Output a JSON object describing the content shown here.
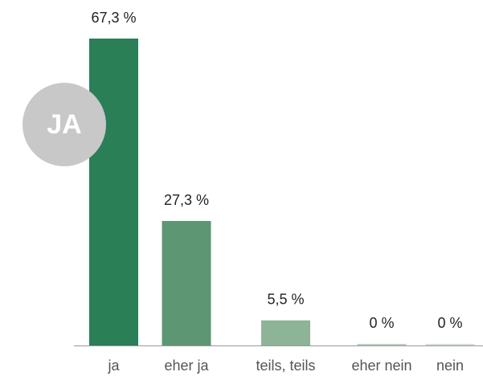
{
  "chart_data": {
    "type": "bar",
    "categories": [
      "ja",
      "eher ja",
      "teils, teils",
      "eher nein",
      "nein"
    ],
    "values": [
      67.3,
      27.3,
      5.5,
      0,
      0
    ],
    "value_labels": [
      "67,3 %",
      "27,3 %",
      "5,5 %",
      "0 %",
      "0 %"
    ],
    "colors": [
      "#2a7f57",
      "#5c9673",
      "#8db496",
      "#b9d1bd",
      "#d3ded6"
    ],
    "annotation": "JA"
  }
}
